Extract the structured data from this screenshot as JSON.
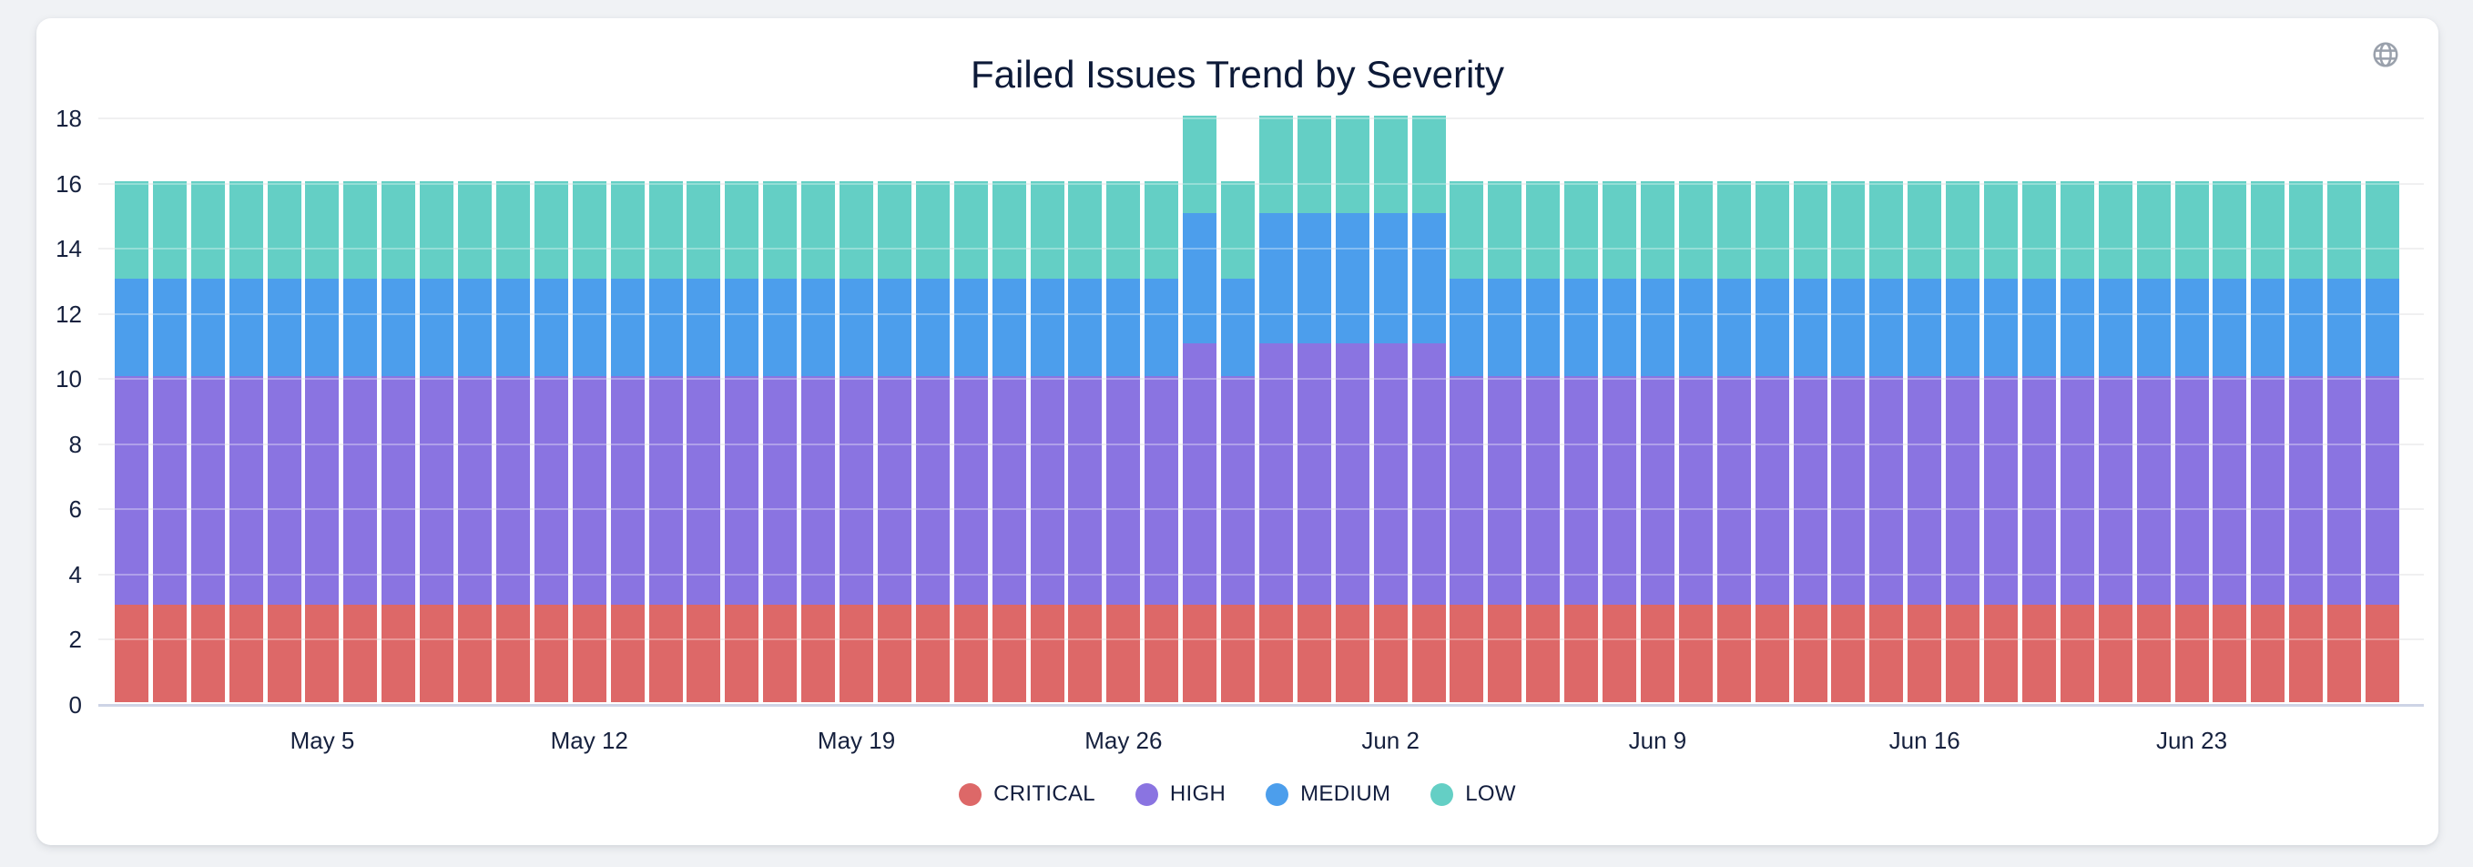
{
  "icons": {
    "globe": "globe-icon"
  },
  "colors": {
    "page_background": "#F0F2F5",
    "card_background": "#FFFFFF",
    "title_text": "#0D1A38",
    "axis_text": "#16213E",
    "gridline": "#E9E9EB",
    "axis_line": "#CED4E6",
    "globe_icon": "#9AA1AC"
  },
  "chart_data": {
    "type": "bar",
    "stacked": true,
    "title": "Failed Issues Trend by Severity",
    "xlabel": "",
    "ylabel": "",
    "ylim": [
      0,
      18
    ],
    "yticks": [
      0,
      2,
      4,
      6,
      8,
      10,
      12,
      14,
      16,
      18
    ],
    "grid": true,
    "legend_position": "bottom",
    "x_tick_indices": [
      5,
      12,
      19,
      26,
      33,
      40,
      47,
      54
    ],
    "x_tick_labels": [
      "May 5",
      "May 12",
      "May 19",
      "May 26",
      "Jun 2",
      "Jun 9",
      "Jun 16",
      "Jun 23"
    ],
    "x": [
      "Apr 30",
      "May 1",
      "May 2",
      "May 3",
      "May 4",
      "May 5",
      "May 6",
      "May 7",
      "May 8",
      "May 9",
      "May 10",
      "May 11",
      "May 12",
      "May 13",
      "May 14",
      "May 15",
      "May 16",
      "May 17",
      "May 18",
      "May 19",
      "May 20",
      "May 21",
      "May 22",
      "May 23",
      "May 24",
      "May 25",
      "May 26",
      "May 27",
      "May 28",
      "May 29",
      "May 30",
      "May 31",
      "Jun 1",
      "Jun 2",
      "Jun 3",
      "Jun 4",
      "Jun 5",
      "Jun 6",
      "Jun 7",
      "Jun 8",
      "Jun 9",
      "Jun 10",
      "Jun 11",
      "Jun 12",
      "Jun 13",
      "Jun 14",
      "Jun 15",
      "Jun 16",
      "Jun 17",
      "Jun 18",
      "Jun 19",
      "Jun 20",
      "Jun 21",
      "Jun 22",
      "Jun 23",
      "Jun 24",
      "Jun 25",
      "Jun 26",
      "Jun 27",
      "Jun 28"
    ],
    "series": [
      {
        "name": "CRITICAL",
        "color": "#DD6868",
        "values": [
          3,
          3,
          3,
          3,
          3,
          3,
          3,
          3,
          3,
          3,
          3,
          3,
          3,
          3,
          3,
          3,
          3,
          3,
          3,
          3,
          3,
          3,
          3,
          3,
          3,
          3,
          3,
          3,
          3,
          3,
          3,
          3,
          3,
          3,
          3,
          3,
          3,
          3,
          3,
          3,
          3,
          3,
          3,
          3,
          3,
          3,
          3,
          3,
          3,
          3,
          3,
          3,
          3,
          3,
          3,
          3,
          3,
          3,
          3,
          3
        ]
      },
      {
        "name": "HIGH",
        "color": "#8A74E1",
        "values": [
          7,
          7,
          7,
          7,
          7,
          7,
          7,
          7,
          7,
          7,
          7,
          7,
          7,
          7,
          7,
          7,
          7,
          7,
          7,
          7,
          7,
          7,
          7,
          7,
          7,
          7,
          7,
          7,
          8,
          7,
          8,
          8,
          8,
          8,
          8,
          7,
          7,
          7,
          7,
          7,
          7,
          7,
          7,
          7,
          7,
          7,
          7,
          7,
          7,
          7,
          7,
          7,
          7,
          7,
          7,
          7,
          7,
          7,
          7,
          7
        ]
      },
      {
        "name": "MEDIUM",
        "color": "#4C9EEC",
        "values": [
          3,
          3,
          3,
          3,
          3,
          3,
          3,
          3,
          3,
          3,
          3,
          3,
          3,
          3,
          3,
          3,
          3,
          3,
          3,
          3,
          3,
          3,
          3,
          3,
          3,
          3,
          3,
          3,
          4,
          3,
          4,
          4,
          4,
          4,
          4,
          3,
          3,
          3,
          3,
          3,
          3,
          3,
          3,
          3,
          3,
          3,
          3,
          3,
          3,
          3,
          3,
          3,
          3,
          3,
          3,
          3,
          3,
          3,
          3,
          3
        ]
      },
      {
        "name": "LOW",
        "color": "#64CFC5",
        "values": [
          3,
          3,
          3,
          3,
          3,
          3,
          3,
          3,
          3,
          3,
          3,
          3,
          3,
          3,
          3,
          3,
          3,
          3,
          3,
          3,
          3,
          3,
          3,
          3,
          3,
          3,
          3,
          3,
          3,
          3,
          3,
          3,
          3,
          3,
          3,
          3,
          3,
          3,
          3,
          3,
          3,
          3,
          3,
          3,
          3,
          3,
          3,
          3,
          3,
          3,
          3,
          3,
          3,
          3,
          3,
          3,
          3,
          3,
          3,
          3
        ]
      }
    ]
  }
}
